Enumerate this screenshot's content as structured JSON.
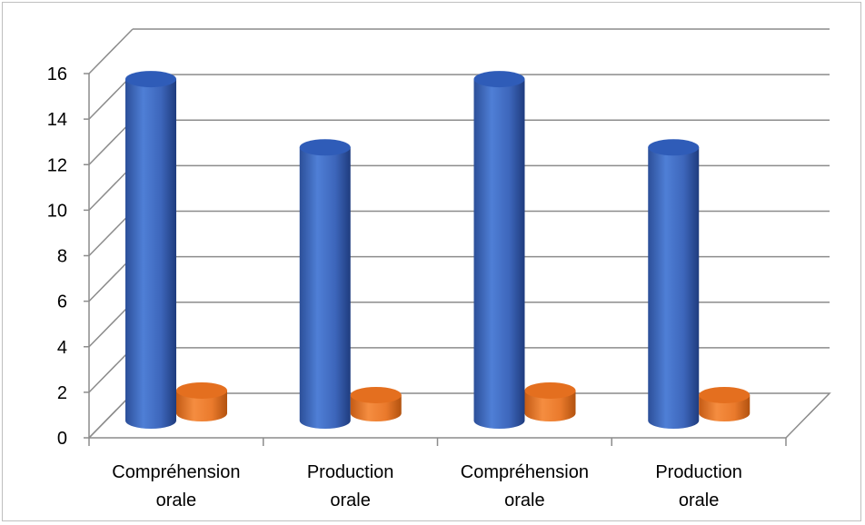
{
  "chart_data": {
    "type": "bar",
    "style": "3d-cylinder",
    "categories": [
      [
        "Compréhension",
        "orale"
      ],
      [
        "Production",
        "orale"
      ],
      [
        "Compréhension",
        "orale"
      ],
      [
        "Production",
        "orale"
      ]
    ],
    "series": [
      {
        "values": [
          15,
          12,
          15,
          12
        ],
        "color": "#4472C4"
      },
      {
        "values": [
          1.0,
          0.8,
          1.0,
          0.8
        ],
        "color": "#ED7D31"
      }
    ],
    "ylim": [
      0,
      16
    ],
    "yticks": [
      "0",
      "2",
      "4",
      "6",
      "8",
      "10",
      "12",
      "14",
      "16"
    ],
    "grid": true,
    "legend": "none",
    "title": "",
    "xlabel": "",
    "ylabel": ""
  }
}
